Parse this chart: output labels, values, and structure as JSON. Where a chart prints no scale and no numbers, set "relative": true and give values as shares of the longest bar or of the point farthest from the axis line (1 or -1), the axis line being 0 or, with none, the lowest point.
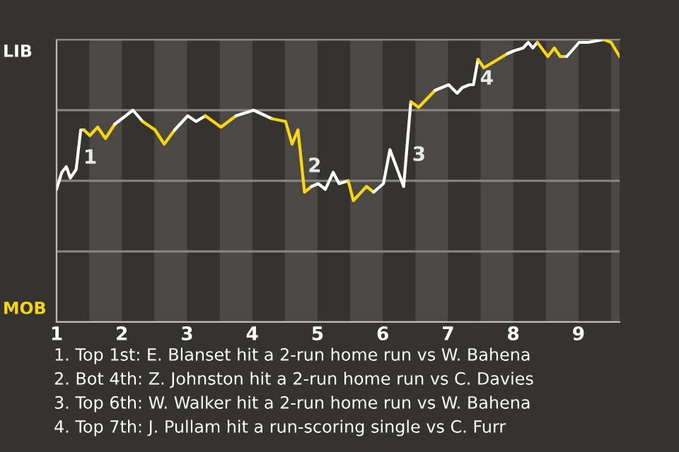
{
  "chart_data": {
    "type": "line",
    "relative": true,
    "xlim": [
      1,
      9.63
    ],
    "xticks": [
      1,
      2,
      3,
      4,
      5,
      6,
      7,
      8,
      9
    ],
    "grid": "y",
    "marker": "none",
    "line_style": "solid",
    "legend": false,
    "series": [
      {
        "color": "#ffffff",
        "x": [
          1.0,
          1.08,
          1.15,
          1.21,
          1.3,
          1.37,
          1.42
        ],
        "values": [
          0.47,
          0.53,
          0.55,
          0.51,
          0.54,
          0.68,
          0.68
        ]
      },
      {
        "color": "#ffd800",
        "x": [
          1.42,
          1.51,
          1.63,
          1.75,
          1.89
        ],
        "values": [
          0.68,
          0.66,
          0.69,
          0.65,
          0.7
        ]
      },
      {
        "color": "#ffffff",
        "x": [
          1.89,
          2.17,
          2.32
        ],
        "values": [
          0.7,
          0.75,
          0.71
        ]
      },
      {
        "color": "#ffd800",
        "x": [
          2.32,
          2.51,
          2.65,
          2.81
        ],
        "values": [
          0.71,
          0.68,
          0.63,
          0.68
        ]
      },
      {
        "color": "#ffffff",
        "x": [
          2.81,
          3.01,
          3.14,
          3.28
        ],
        "values": [
          0.68,
          0.73,
          0.71,
          0.73
        ]
      },
      {
        "color": "#ffd800",
        "x": [
          3.28,
          3.52,
          3.75
        ],
        "values": [
          0.73,
          0.69,
          0.73
        ]
      },
      {
        "color": "#ffffff",
        "x": [
          3.75,
          4.02,
          4.3
        ],
        "values": [
          0.73,
          0.75,
          0.72
        ]
      },
      {
        "color": "#ffd800",
        "x": [
          4.3,
          4.51,
          4.61,
          4.7,
          4.8,
          4.91
        ],
        "values": [
          0.72,
          0.71,
          0.63,
          0.68,
          0.46,
          0.48
        ]
      },
      {
        "color": "#ffffff",
        "x": [
          4.91,
          5.01,
          5.12,
          5.24,
          5.33,
          5.47
        ],
        "values": [
          0.48,
          0.49,
          0.47,
          0.53,
          0.49,
          0.5
        ]
      },
      {
        "color": "#ffd800",
        "x": [
          5.47,
          5.55,
          5.75,
          5.86
        ],
        "values": [
          0.5,
          0.43,
          0.48,
          0.46
        ]
      },
      {
        "color": "#ffffff",
        "x": [
          5.86,
          6.01,
          6.11,
          6.32,
          6.43
        ],
        "values": [
          0.46,
          0.49,
          0.61,
          0.48,
          0.78
        ]
      },
      {
        "color": "#ffd800",
        "x": [
          6.43,
          6.55,
          6.8
        ],
        "values": [
          0.78,
          0.76,
          0.82
        ]
      },
      {
        "color": "#ffffff",
        "x": [
          6.8,
          7.01,
          7.14,
          7.22,
          7.33,
          7.39,
          7.46
        ],
        "values": [
          0.82,
          0.84,
          0.81,
          0.83,
          0.84,
          0.84,
          0.93
        ]
      },
      {
        "color": "#ffd800",
        "x": [
          7.46,
          7.55,
          7.91
        ],
        "values": [
          0.93,
          0.9,
          0.95
        ]
      },
      {
        "color": "#ffffff",
        "x": [
          7.91,
          8.01,
          8.15,
          8.23,
          8.3,
          8.37
        ],
        "values": [
          0.95,
          0.96,
          0.97,
          0.99,
          0.97,
          0.99
        ]
      },
      {
        "color": "#ffd800",
        "x": [
          8.37,
          8.53,
          8.63,
          8.72,
          8.82
        ],
        "values": [
          0.99,
          0.94,
          0.97,
          0.94,
          0.94
        ]
      },
      {
        "color": "#ffffff",
        "x": [
          8.82,
          9.01,
          9.15,
          9.39
        ],
        "values": [
          0.94,
          0.99,
          0.99,
          1
        ]
      },
      {
        "color": "#ffd800",
        "x": [
          9.39,
          9.5,
          9.63
        ],
        "values": [
          1,
          0.99,
          0.94
        ]
      }
    ],
    "bands": [
      {
        "axis": "x",
        "from": 1.5,
        "to": 2,
        "color": "#4b4946"
      },
      {
        "axis": "x",
        "from": 2.5,
        "to": 3,
        "color": "#4b4946"
      },
      {
        "axis": "x",
        "from": 3.5,
        "to": 4,
        "color": "#4b4946"
      },
      {
        "axis": "x",
        "from": 4.5,
        "to": 5,
        "color": "#4b4946"
      },
      {
        "axis": "x",
        "from": 5.5,
        "to": 6,
        "color": "#4b4946"
      },
      {
        "axis": "x",
        "from": 6.5,
        "to": 7,
        "color": "#4b4946"
      },
      {
        "axis": "x",
        "from": 7.5,
        "to": 8,
        "color": "#4b4946"
      },
      {
        "axis": "x",
        "from": 8.5,
        "to": 9,
        "color": "#4b4946"
      },
      {
        "axis": "x",
        "from": 9.5,
        "to": 9.63,
        "color": "#4b4946"
      }
    ],
    "annotations": [
      "LIB",
      "MOB",
      {
        "text": "1",
        "x": 1.32,
        "y": 0.58
      },
      {
        "text": "2",
        "x": 4.76,
        "y": 0.55
      },
      {
        "text": "3",
        "x": 6.36,
        "y": 0.59
      },
      {
        "text": "4",
        "x": 7.4,
        "y": 0.86
      },
      "1. Top 1st: E. Blanset hit a 2-run home run vs W. Bahena",
      "2. Bot 4th: Z. Johnston hit a 2-run home run vs C. Davies",
      "3. Top 6th: W. Walker hit a 2-run home run vs W. Bahena",
      "4. Top 7th: J. Pullam hit a run-scoring single vs C. Furr"
    ]
  }
}
